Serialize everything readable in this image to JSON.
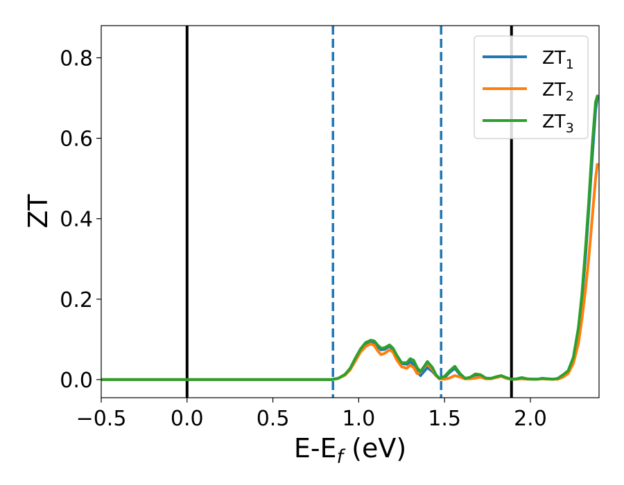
{
  "chart_data": {
    "type": "line",
    "xlabel": "E-E",
    "xlabel_sub": "f",
    "xlabel_unit": " (eV)",
    "ylabel": "ZT",
    "xlim": [
      -0.5,
      2.4
    ],
    "ylim": [
      -0.045,
      0.88
    ],
    "xticks": [
      -0.5,
      0.0,
      0.5,
      1.0,
      1.5,
      2.0
    ],
    "xtick_labels": [
      "−0.5",
      "0.0",
      "0.5",
      "1.0",
      "1.5",
      "2.0"
    ],
    "yticks": [
      0.0,
      0.2,
      0.4,
      0.6,
      0.8
    ],
    "ytick_labels": [
      "0.0",
      "0.2",
      "0.4",
      "0.6",
      "0.8"
    ],
    "legend_position": "top-right",
    "vlines": [
      {
        "x": 0.0,
        "style": "solid",
        "color": "#000000"
      },
      {
        "x": 0.85,
        "style": "dashed",
        "color": "#1f77b4"
      },
      {
        "x": 1.48,
        "style": "dashed",
        "color": "#1f77b4"
      },
      {
        "x": 1.89,
        "style": "solid",
        "color": "#000000"
      }
    ],
    "x": [
      -0.5,
      0.0,
      0.5,
      0.84,
      0.88,
      0.92,
      0.95,
      0.98,
      1.01,
      1.04,
      1.07,
      1.09,
      1.11,
      1.13,
      1.15,
      1.18,
      1.2,
      1.22,
      1.25,
      1.28,
      1.3,
      1.32,
      1.34,
      1.36,
      1.38,
      1.4,
      1.43,
      1.45,
      1.47,
      1.5,
      1.53,
      1.56,
      1.59,
      1.62,
      1.65,
      1.68,
      1.71,
      1.74,
      1.77,
      1.8,
      1.83,
      1.86,
      1.89,
      1.92,
      1.95,
      1.98,
      2.01,
      2.04,
      2.07,
      2.1,
      2.13,
      2.16,
      2.19,
      2.22,
      2.25,
      2.28,
      2.3,
      2.32,
      2.34,
      2.36,
      2.38,
      2.39
    ],
    "series": [
      {
        "name": "ZT",
        "name_sub": "1",
        "color": "#1f77b4",
        "values": [
          0.0,
          0.0,
          0.0,
          0.0,
          0.003,
          0.012,
          0.026,
          0.05,
          0.072,
          0.087,
          0.094,
          0.092,
          0.082,
          0.074,
          0.075,
          0.083,
          0.076,
          0.06,
          0.04,
          0.038,
          0.045,
          0.038,
          0.02,
          0.01,
          0.02,
          0.03,
          0.02,
          0.01,
          0.002,
          0.005,
          0.018,
          0.028,
          0.012,
          0.002,
          0.004,
          0.012,
          0.01,
          0.003,
          0.003,
          0.006,
          0.009,
          0.004,
          0.001,
          0.001,
          0.004,
          0.002,
          0.001,
          0.001,
          0.003,
          0.002,
          0.001,
          0.002,
          0.01,
          0.02,
          0.05,
          0.12,
          0.2,
          0.3,
          0.42,
          0.55,
          0.67,
          0.7
        ]
      },
      {
        "name": "ZT",
        "name_sub": "2",
        "color": "#ff7f0e",
        "values": [
          0.0,
          0.0,
          0.0,
          0.0,
          0.003,
          0.011,
          0.024,
          0.046,
          0.068,
          0.082,
          0.089,
          0.085,
          0.072,
          0.062,
          0.065,
          0.074,
          0.068,
          0.05,
          0.032,
          0.028,
          0.036,
          0.03,
          0.015,
          0.018,
          0.032,
          0.038,
          0.025,
          0.01,
          0.002,
          0.001,
          0.004,
          0.01,
          0.006,
          0.002,
          0.002,
          0.004,
          0.006,
          0.002,
          0.002,
          0.005,
          0.008,
          0.003,
          0.001,
          0.001,
          0.002,
          0.001,
          0.001,
          0.001,
          0.002,
          0.001,
          0.001,
          0.001,
          0.006,
          0.015,
          0.04,
          0.09,
          0.15,
          0.22,
          0.3,
          0.4,
          0.5,
          0.535
        ]
      },
      {
        "name": "ZT",
        "name_sub": "3",
        "color": "#2ca02c",
        "values": [
          0.0,
          0.0,
          0.0,
          0.0,
          0.003,
          0.013,
          0.028,
          0.053,
          0.076,
          0.092,
          0.098,
          0.096,
          0.086,
          0.078,
          0.079,
          0.086,
          0.078,
          0.062,
          0.042,
          0.042,
          0.052,
          0.048,
          0.03,
          0.02,
          0.032,
          0.045,
          0.03,
          0.012,
          0.003,
          0.008,
          0.022,
          0.033,
          0.015,
          0.003,
          0.006,
          0.014,
          0.012,
          0.004,
          0.003,
          0.007,
          0.01,
          0.005,
          0.001,
          0.002,
          0.005,
          0.002,
          0.001,
          0.001,
          0.003,
          0.002,
          0.001,
          0.003,
          0.012,
          0.022,
          0.055,
          0.13,
          0.21,
          0.32,
          0.44,
          0.58,
          0.69,
          0.705
        ]
      }
    ]
  }
}
